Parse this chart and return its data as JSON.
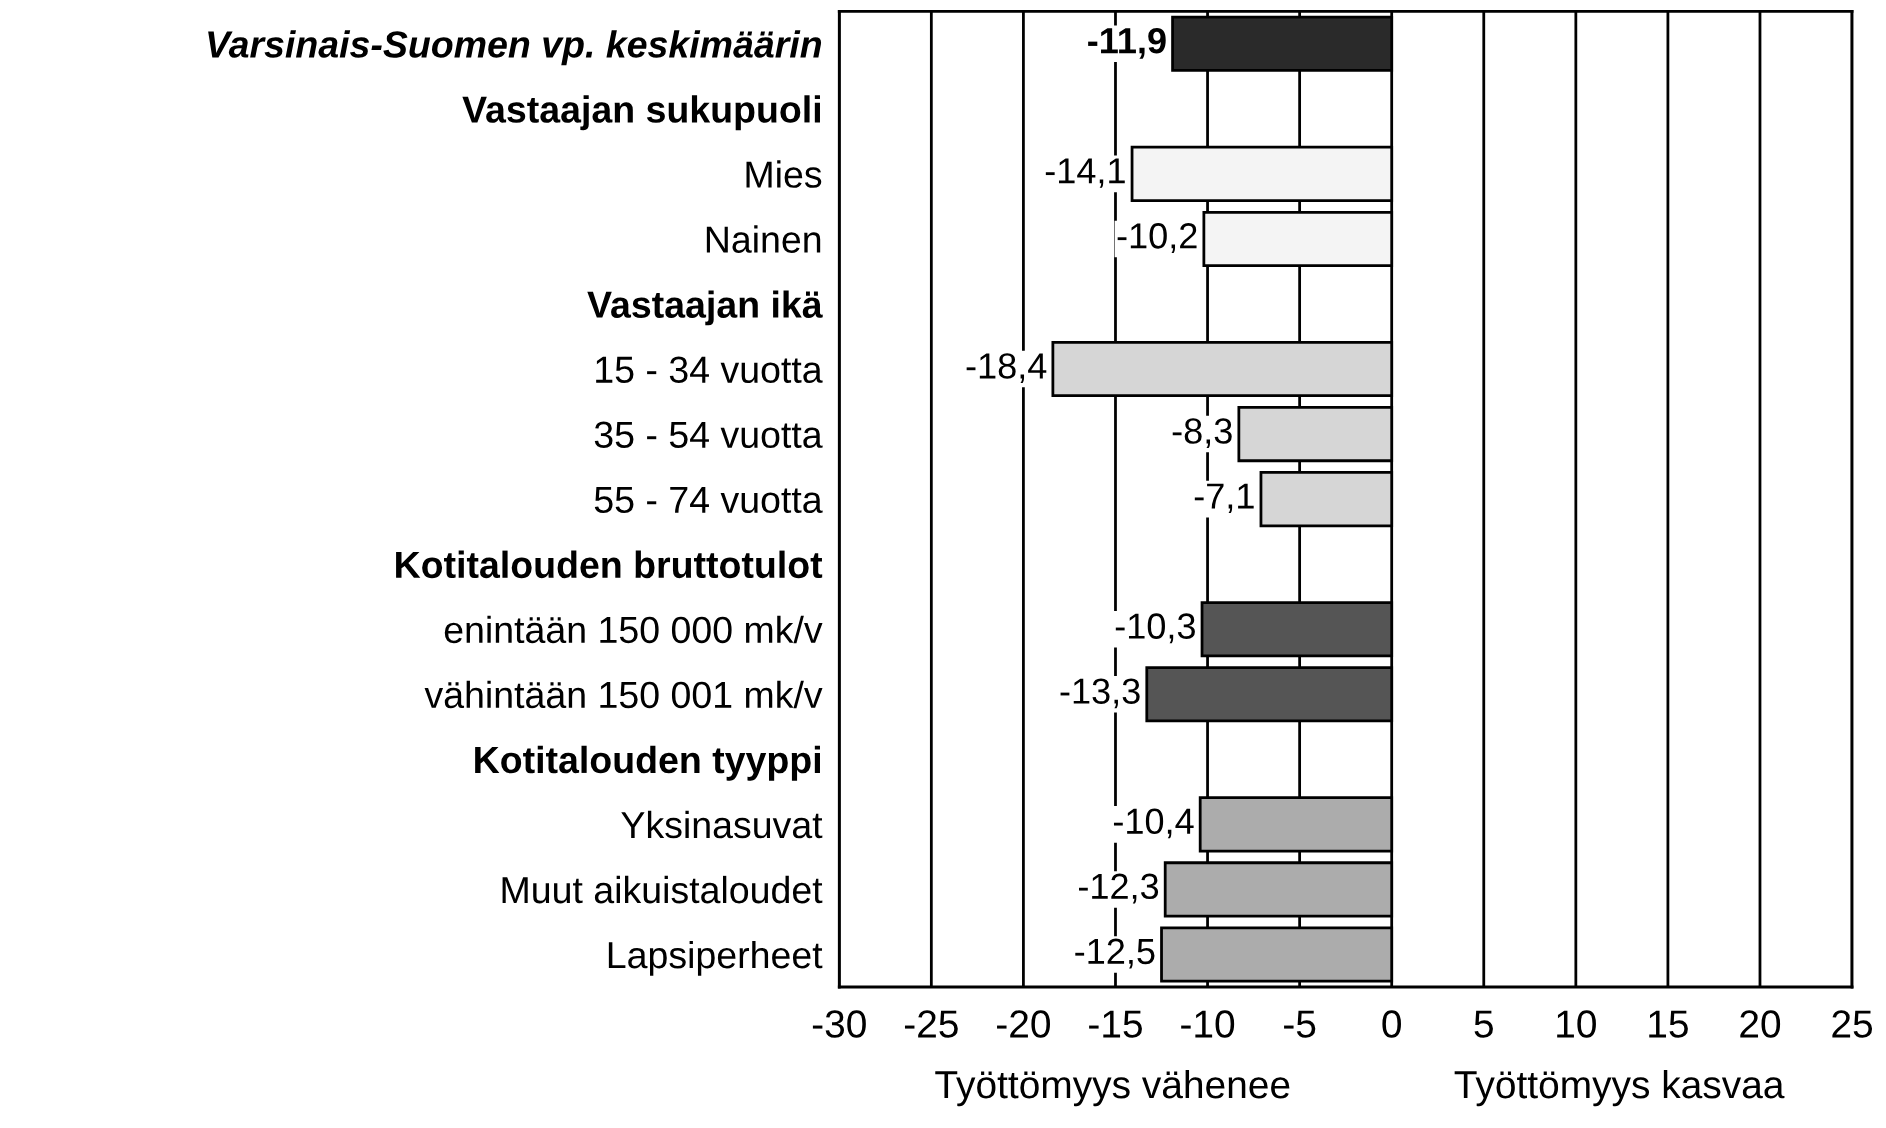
{
  "chart_data": {
    "type": "bar",
    "orientation": "horizontal",
    "categories": [
      "Varsinais-Suomen vp. keskimäärin",
      "Vastaajan sukupuoli",
      "Mies",
      "Nainen",
      "Vastaajan ikä",
      "15 - 34 vuotta",
      "35 - 54 vuotta",
      "55 - 74 vuotta",
      "Kotitalouden bruttotulot",
      "enintään 150 000 mk/v",
      "vähintään 150 001 mk/v",
      "Kotitalouden tyyppi",
      "Yksinasuvat",
      "Muut aikuistaloudet",
      "Lapsiperheet"
    ],
    "values": [
      -11.9,
      null,
      -14.1,
      -10.2,
      null,
      -18.4,
      -8.3,
      -7.1,
      null,
      -10.3,
      -13.3,
      null,
      -10.4,
      -12.3,
      -12.5
    ],
    "value_labels": [
      "-11,9",
      null,
      "-14,1",
      "-10,2",
      null,
      "-18,4",
      "-8,3",
      "-7,1",
      null,
      "-10,3",
      "-13,3",
      null,
      "-10,4",
      "-12,3",
      "-12,5"
    ],
    "colors": [
      "#2a2a2a",
      null,
      "#f4f4f4",
      "#f4f4f4",
      null,
      "#d6d6d6",
      "#d6d6d6",
      "#d6d6d6",
      null,
      "#555555",
      "#555555",
      null,
      "#acacac",
      "#acacac",
      "#acacac"
    ],
    "xlim": [
      -30,
      25
    ],
    "xticks": [
      -30,
      -25,
      -20,
      -15,
      -10,
      -5,
      0,
      5,
      10,
      15,
      20,
      25
    ],
    "grid": "x",
    "annotations": [
      "Työttömyys vähenee",
      "Työttömyys kasvaa"
    ]
  }
}
